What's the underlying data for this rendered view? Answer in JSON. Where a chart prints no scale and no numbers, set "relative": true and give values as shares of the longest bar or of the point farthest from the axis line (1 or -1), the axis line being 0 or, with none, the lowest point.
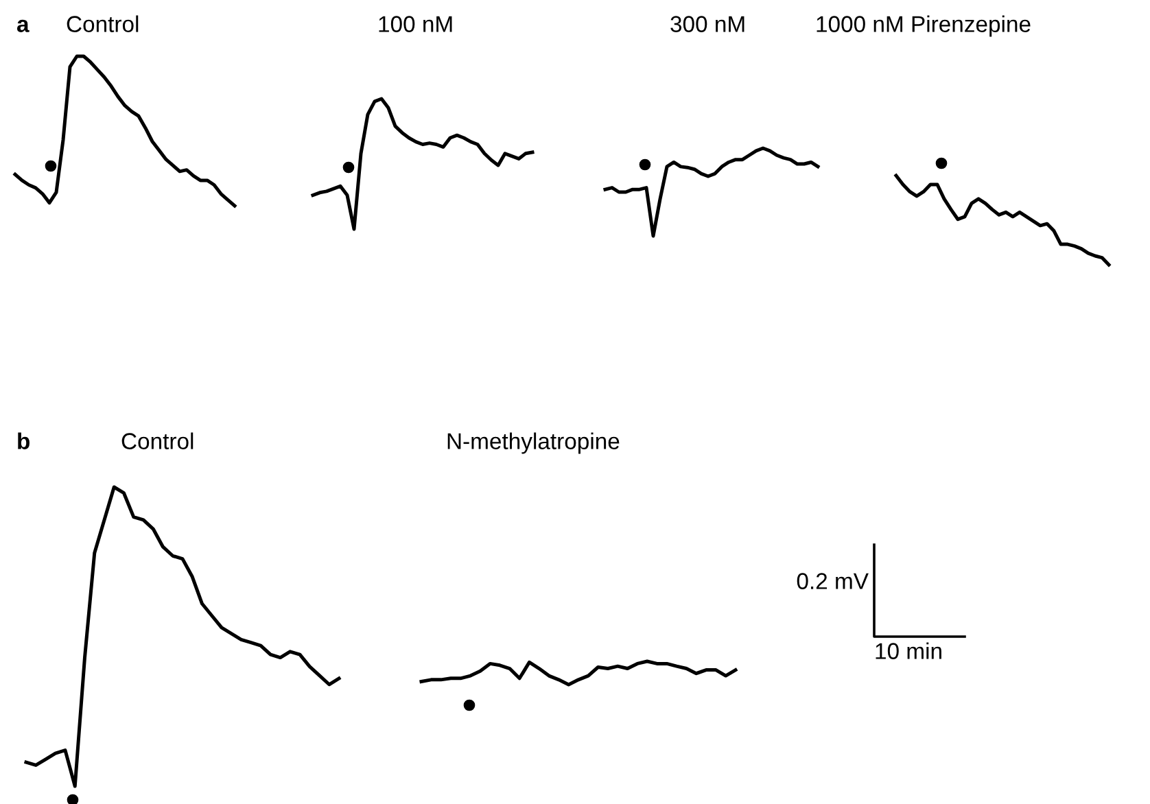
{
  "chart_data": [
    {
      "type": "line",
      "title": "Control",
      "relative": true,
      "annotations": [
        "a"
      ],
      "categories": [
        null,
        null,
        null,
        null,
        null,
        null,
        null,
        null,
        null,
        null,
        null,
        null,
        null,
        null,
        null,
        null,
        null,
        null,
        null,
        null,
        null,
        null,
        null,
        null,
        null,
        null,
        null,
        null,
        null,
        null,
        null,
        null,
        null
      ],
      "series": [
        {
          "color": "#000000",
          "values": [
            0.21,
            0.17,
            0.14,
            0.12,
            0.08,
            0.02,
            0.09,
            0.44,
            0.93,
            1.0,
            1.0,
            0.96,
            0.91,
            0.86,
            0.8,
            0.73,
            0.67,
            0.63,
            0.6,
            0.52,
            0.43,
            0.37,
            0.31,
            0.27,
            0.23,
            0.24,
            0.2,
            0.17,
            0.17,
            0.14,
            0.08,
            0.04,
            0.0
          ]
        }
      ]
    },
    {
      "type": "line",
      "title": "100 nM",
      "relative": true,
      "categories": [
        null,
        null,
        null,
        null,
        null,
        null,
        null,
        null,
        null,
        null,
        null,
        null,
        null,
        null,
        null,
        null,
        null,
        null,
        null,
        null,
        null,
        null,
        null,
        null,
        null,
        null,
        null,
        null,
        null,
        null,
        null,
        null,
        null
      ],
      "series": [
        {
          "color": "#000000",
          "values": [
            0.26,
            0.28,
            0.29,
            0.31,
            0.33,
            0.26,
            0.0,
            0.58,
            0.88,
            0.98,
            1.0,
            0.93,
            0.79,
            0.74,
            0.7,
            0.67,
            0.65,
            0.66,
            0.65,
            0.63,
            0.7,
            0.72,
            0.7,
            0.67,
            0.65,
            0.58,
            0.53,
            0.49,
            0.58,
            0.56,
            0.54,
            0.58,
            0.59
          ]
        }
      ]
    },
    {
      "type": "line",
      "title": "300 nM",
      "relative": true,
      "categories": [
        null,
        null,
        null,
        null,
        null,
        null,
        null,
        null,
        null,
        null,
        null,
        null,
        null,
        null,
        null,
        null,
        null,
        null,
        null,
        null,
        null,
        null,
        null,
        null,
        null,
        null,
        null,
        null,
        null,
        null,
        null,
        null
      ],
      "series": [
        {
          "color": "#000000",
          "values": [
            0.53,
            0.55,
            0.5,
            0.5,
            0.53,
            0.53,
            0.55,
            0.0,
            0.42,
            0.79,
            0.84,
            0.79,
            0.78,
            0.76,
            0.71,
            0.68,
            0.71,
            0.79,
            0.84,
            0.87,
            0.87,
            0.92,
            0.97,
            1.0,
            0.97,
            0.92,
            0.89,
            0.87,
            0.82,
            0.82,
            0.84,
            0.79
          ]
        }
      ]
    },
    {
      "type": "line",
      "title": "1000 nM Pirenzepine",
      "relative": true,
      "categories": [
        null,
        null,
        null,
        null,
        null,
        null,
        null,
        null,
        null,
        null,
        null,
        null,
        null,
        null,
        null,
        null,
        null,
        null,
        null,
        null,
        null,
        null,
        null,
        null,
        null,
        null,
        null,
        null,
        null,
        null,
        null,
        null
      ],
      "series": [
        {
          "color": "#000000",
          "values": [
            1.0,
            0.9,
            0.82,
            0.77,
            0.82,
            0.9,
            0.9,
            0.74,
            0.62,
            0.51,
            0.54,
            0.69,
            0.74,
            0.69,
            0.62,
            0.56,
            0.59,
            0.54,
            0.59,
            0.54,
            0.49,
            0.44,
            0.46,
            0.38,
            0.23,
            0.23,
            0.21,
            0.18,
            0.13,
            0.1,
            0.08,
            0.0
          ]
        }
      ]
    },
    {
      "type": "line",
      "title": "Control",
      "relative": true,
      "annotations": [
        "b"
      ],
      "categories": [
        null,
        null,
        null,
        null,
        null,
        null,
        null,
        null,
        null,
        null,
        null,
        null,
        null,
        null,
        null,
        null,
        null,
        null,
        null,
        null,
        null,
        null,
        null,
        null,
        null,
        null,
        null,
        null,
        null,
        null,
        null,
        null,
        null
      ],
      "series": [
        {
          "color": "#000000",
          "values": [
            0.08,
            0.07,
            0.09,
            0.11,
            0.12,
            0.0,
            0.43,
            0.78,
            0.89,
            1.0,
            0.98,
            0.9,
            0.89,
            0.86,
            0.8,
            0.77,
            0.76,
            0.7,
            0.61,
            0.57,
            0.53,
            0.51,
            0.49,
            0.48,
            0.47,
            0.44,
            0.43,
            0.45,
            0.44,
            0.4,
            0.37,
            0.34,
            0.36
          ]
        }
      ]
    },
    {
      "type": "line",
      "title": "N-methylatropine",
      "relative": true,
      "annotations": [
        "0.2 mV",
        "10 min"
      ],
      "categories": [
        null,
        null,
        null,
        null,
        null,
        null,
        null,
        null,
        null,
        null,
        null,
        null,
        null,
        null,
        null,
        null,
        null,
        null,
        null,
        null,
        null,
        null,
        null,
        null,
        null,
        null,
        null,
        null,
        null,
        null,
        null,
        null,
        null
      ],
      "series": [
        {
          "color": "#000000",
          "values": [
            0.13,
            0.21,
            0.21,
            0.27,
            0.27,
            0.38,
            0.58,
            0.9,
            0.83,
            0.69,
            0.27,
            0.96,
            0.69,
            0.38,
            0.21,
            0.0,
            0.21,
            0.38,
            0.75,
            0.69,
            0.79,
            0.69,
            0.9,
            1.0,
            0.9,
            0.9,
            0.79,
            0.69,
            0.48,
            0.63,
            0.63,
            0.38,
            0.63
          ]
        }
      ]
    }
  ]
}
